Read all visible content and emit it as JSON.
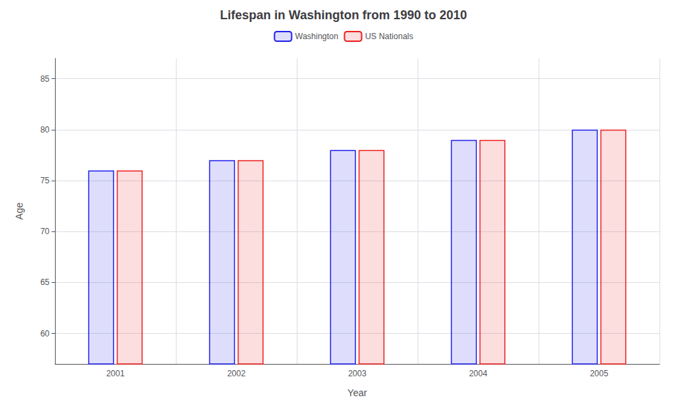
{
  "chart_data": {
    "type": "bar",
    "title": "Lifespan in Washington from 1990 to 2010",
    "xlabel": "Year",
    "ylabel": "Age",
    "categories": [
      "2001",
      "2002",
      "2003",
      "2004",
      "2005"
    ],
    "series": [
      {
        "name": "Washington",
        "color": "#2222ee",
        "values": [
          76,
          77,
          78,
          79,
          80
        ]
      },
      {
        "name": "US Nationals",
        "color": "#ee2222",
        "values": [
          76,
          77,
          78,
          79,
          80
        ]
      }
    ],
    "ylim": [
      57,
      87
    ],
    "yticks": [
      60,
      65,
      70,
      75,
      80,
      85
    ],
    "grid": true,
    "legend": "upper center"
  }
}
